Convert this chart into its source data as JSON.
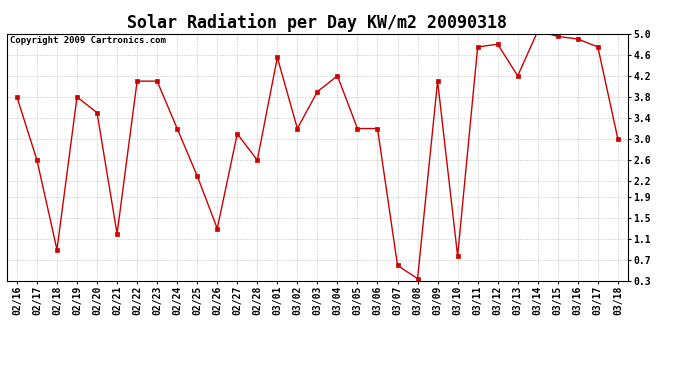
{
  "title": "Solar Radiation per Day KW/m2 20090318",
  "copyright": "Copyright 2009 Cartronics.com",
  "labels": [
    "02/16",
    "02/17",
    "02/18",
    "02/19",
    "02/20",
    "02/21",
    "02/22",
    "02/23",
    "02/24",
    "02/25",
    "02/26",
    "02/27",
    "02/28",
    "03/01",
    "03/02",
    "03/03",
    "03/04",
    "03/05",
    "03/06",
    "03/07",
    "03/08",
    "03/09",
    "03/10",
    "03/11",
    "03/12",
    "03/13",
    "03/14",
    "03/15",
    "03/16",
    "03/17",
    "03/18"
  ],
  "values": [
    3.8,
    2.6,
    0.9,
    3.8,
    3.5,
    1.2,
    4.1,
    4.1,
    3.2,
    2.3,
    1.3,
    3.1,
    2.6,
    4.55,
    3.2,
    3.9,
    4.2,
    3.2,
    3.2,
    0.6,
    0.35,
    4.1,
    0.78,
    4.75,
    4.8,
    4.2,
    5.05,
    4.95,
    4.9,
    4.75,
    3.0
  ],
  "line_color": "#cc0000",
  "marker": "s",
  "marker_size": 2.5,
  "bg_color": "#ffffff",
  "grid_color": "#aaaaaa",
  "ylim": [
    0.3,
    5.0
  ],
  "yticks": [
    0.3,
    0.7,
    1.1,
    1.5,
    1.9,
    2.2,
    2.6,
    3.0,
    3.4,
    3.8,
    4.2,
    4.6,
    5.0
  ],
  "title_fontsize": 12,
  "tick_fontsize": 7,
  "copyright_fontsize": 6.5,
  "linewidth": 1.0
}
